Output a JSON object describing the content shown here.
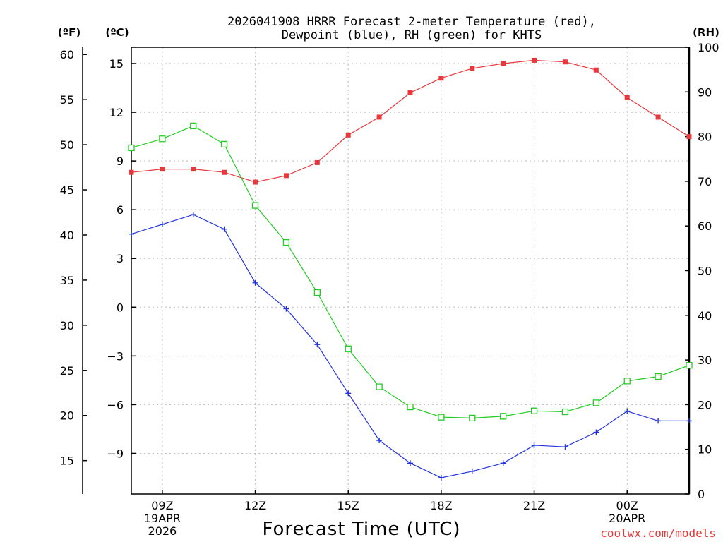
{
  "chart_data": {
    "type": "line",
    "title": [
      "2026041908 HRRR Forecast 2-meter Temperature (red),",
      "Dewpoint (blue), RH (green) for KHTS"
    ],
    "xlabel": "Forecast Time (UTC)",
    "credit": "coolwx.com/models",
    "units": {
      "f": "(ºF)",
      "c": "(ºC)",
      "rh": "(RH)"
    },
    "x": [
      8,
      9,
      10,
      11,
      12,
      13,
      14,
      15,
      16,
      17,
      18,
      19,
      20,
      21,
      22,
      23,
      24,
      25,
      26
    ],
    "xlim": [
      8,
      26
    ],
    "x_ticks": [
      {
        "at": 9,
        "lines": [
          "09Z",
          "19APR",
          "2026"
        ]
      },
      {
        "at": 12,
        "lines": [
          "12Z"
        ]
      },
      {
        "at": 15,
        "lines": [
          "15Z"
        ]
      },
      {
        "at": 18,
        "lines": [
          "18Z"
        ]
      },
      {
        "at": 21,
        "lines": [
          "21Z"
        ]
      },
      {
        "at": 24,
        "lines": [
          "00Z",
          "20APR"
        ]
      }
    ],
    "left_axis_c": {
      "ylim": [
        -11.5,
        16.0
      ],
      "ticks": [
        15,
        12,
        9,
        6,
        3,
        0,
        -3,
        -6,
        -9
      ],
      "tick_labels": [
        "15",
        "12",
        "9",
        "6",
        "3",
        "0",
        "−3",
        "−6",
        "−9"
      ]
    },
    "left_axis_f": {
      "ticks": [
        60,
        55,
        50,
        45,
        40,
        35,
        30,
        25,
        20,
        15
      ],
      "tick_labels": [
        "60",
        "55",
        "50",
        "45",
        "40",
        "35",
        "30",
        "25",
        "20",
        "15"
      ]
    },
    "right_axis_rh": {
      "ylim": [
        0,
        100
      ],
      "ticks": [
        100,
        90,
        80,
        70,
        60,
        50,
        40,
        30,
        20,
        10,
        0
      ],
      "tick_labels": [
        "100",
        "90",
        "80",
        "70",
        "60",
        "50",
        "40",
        "30",
        "20",
        "10",
        "0"
      ]
    },
    "series": [
      {
        "name": "2-meter Temperature",
        "axis": "c",
        "color": "#e8383d",
        "marker": "filled-square",
        "values": [
          8.3,
          8.5,
          8.5,
          8.3,
          7.7,
          8.1,
          8.9,
          10.6,
          11.7,
          13.2,
          14.1,
          14.7,
          15.0,
          15.2,
          15.1,
          14.6,
          12.9,
          11.7,
          10.5
        ]
      },
      {
        "name": "Dewpoint",
        "axis": "c",
        "color": "#2233dd",
        "marker": "plus",
        "values": [
          4.5,
          5.1,
          5.7,
          4.8,
          1.5,
          -0.1,
          -2.3,
          -5.3,
          -8.2,
          -9.6,
          -10.5,
          -10.1,
          -9.6,
          -8.5,
          -8.6,
          -7.7,
          -6.4,
          -7.0,
          -7.0
        ]
      },
      {
        "name": "RH",
        "axis": "rh",
        "color": "#22cc22",
        "marker": "open-square",
        "values": [
          77.5,
          79.5,
          82.4,
          78.3,
          64.6,
          56.3,
          45.1,
          32.5,
          24.0,
          19.5,
          17.2,
          17.0,
          17.4,
          18.6,
          18.4,
          20.4,
          25.3,
          26.3,
          28.8
        ]
      }
    ]
  }
}
